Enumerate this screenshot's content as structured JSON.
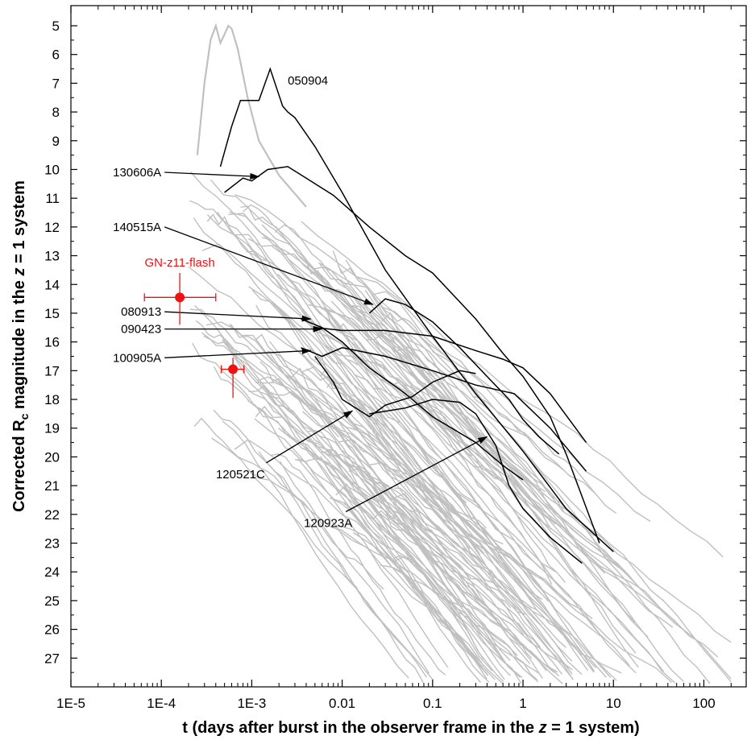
{
  "chart_data": {
    "type": "line",
    "x_scale": "log",
    "y_inverted": true,
    "grid": false,
    "xlim": [
      1e-05,
      300
    ],
    "ylim": [
      28,
      4.3
    ],
    "x_ticks": [
      1e-05,
      0.0001,
      0.001,
      0.01,
      0.1,
      1,
      10,
      100
    ],
    "x_tick_labels": [
      "1E-5",
      "1E-4",
      "1E-3",
      "0.01",
      "0.1",
      "1",
      "10",
      "100"
    ],
    "y_ticks": [
      5,
      6,
      7,
      8,
      9,
      10,
      11,
      12,
      13,
      14,
      15,
      16,
      17,
      18,
      19,
      20,
      21,
      22,
      23,
      24,
      25,
      26,
      27
    ],
    "xlabel_prefix": "t (days after burst in the observer frame in the ",
    "xlabel_italic": "z",
    "xlabel_suffix": " = 1 system)",
    "ylabel_prefix": "Corrected R",
    "ylabel_sub": "c",
    "ylabel_middle": " magnitude in the ",
    "ylabel_italic": "z",
    "ylabel_suffix": " = 1 system",
    "colors": {
      "background_curves": "#c0c0c0",
      "highlighted": "#000000",
      "flash": "#ee1111"
    },
    "series": [
      {
        "name": "050904",
        "x": [
          0.00045,
          0.0006,
          0.00075,
          0.0012,
          0.0016,
          0.0022,
          0.0025,
          0.003,
          0.005,
          0.01,
          0.03,
          0.1,
          0.3,
          1,
          3,
          10
        ],
        "y": [
          9.9,
          8.5,
          7.6,
          7.6,
          6.5,
          7.8,
          8.0,
          8.2,
          9.2,
          10.8,
          13.5,
          15.8,
          17.8,
          19.8,
          21.8,
          23.3
        ],
        "label_x": 0.0025,
        "label_y": 6.9
      },
      {
        "name": "130606A",
        "x": [
          0.0005,
          0.0008,
          0.001,
          0.0015,
          0.0025,
          0.004,
          0.008,
          0.02,
          0.05,
          0.1,
          0.3,
          0.6,
          1,
          2,
          3,
          7
        ],
        "y": [
          10.8,
          10.3,
          10.4,
          10.0,
          9.9,
          10.3,
          10.9,
          12.0,
          13.0,
          13.6,
          15.2,
          16.4,
          17.2,
          18.6,
          19.9,
          23.0
        ],
        "label_x": 0.0001,
        "label_y": 10.1
      },
      {
        "name": "140515A",
        "x": [
          0.02,
          0.03,
          0.05,
          0.1,
          0.2,
          0.4,
          0.7,
          1,
          1.5,
          2.5
        ],
        "y": [
          15.0,
          14.5,
          14.7,
          15.3,
          16.2,
          17.2,
          18.0,
          18.7,
          19.3,
          19.9
        ],
        "label_x": 0.0001,
        "label_y": 12.0
      },
      {
        "name": "080913",
        "x": [
          0.0035,
          0.006,
          0.01,
          0.02,
          0.05,
          0.1,
          0.3,
          0.6,
          1
        ],
        "y": [
          15.2,
          15.5,
          16.0,
          16.9,
          17.8,
          18.6,
          19.5,
          20.3,
          20.8
        ],
        "label_x": 0.0001,
        "label_y": 14.95
      },
      {
        "name": "090423",
        "x": [
          0.005,
          0.01,
          0.03,
          0.1,
          0.3,
          0.6,
          1,
          2,
          5
        ],
        "y": [
          15.5,
          15.6,
          15.6,
          15.8,
          16.3,
          16.6,
          16.9,
          17.8,
          19.5
        ],
        "label_x": 0.0001,
        "label_y": 15.55
      },
      {
        "name": "100905A",
        "x": [
          0.0035,
          0.006,
          0.01,
          0.03,
          0.1,
          0.3,
          0.8,
          2,
          5
        ],
        "y": [
          16.2,
          16.5,
          16.2,
          16.5,
          17.0,
          17.5,
          17.8,
          19.0,
          20.5
        ],
        "label_x": 0.0001,
        "label_y": 16.55
      },
      {
        "name": "120521C",
        "x": [
          0.005,
          0.008,
          0.01,
          0.02,
          0.03,
          0.06,
          0.1,
          0.2,
          0.3
        ],
        "y": [
          16.5,
          17.4,
          18.0,
          18.6,
          18.2,
          17.9,
          17.4,
          17.0,
          17.1
        ],
        "label_x": 0.00075,
        "label_y": 20.6
      },
      {
        "name": "120923A",
        "x": [
          0.02,
          0.05,
          0.1,
          0.2,
          0.3,
          0.5,
          0.7,
          1,
          2,
          4.5
        ],
        "y": [
          18.5,
          18.3,
          18.0,
          18.1,
          18.5,
          19.6,
          21.0,
          21.8,
          22.8,
          23.7
        ],
        "label_x": 0.007,
        "label_y": 22.3
      }
    ],
    "flash_label": "GN-z11-flash",
    "flash_points": [
      {
        "x": 0.00016,
        "y": 14.45,
        "xerr": [
          6.5e-05,
          0.0004
        ],
        "yerr": [
          13.6,
          15.4
        ]
      },
      {
        "x": 0.00062,
        "y": 16.95,
        "xerr": [
          0.00046,
          0.00082
        ],
        "yerr": [
          16.55,
          17.95
        ]
      }
    ]
  }
}
